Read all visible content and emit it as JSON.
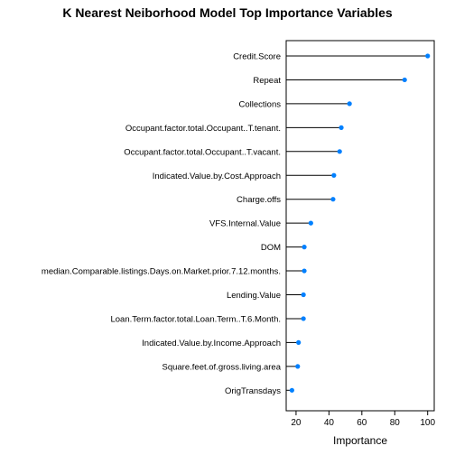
{
  "chart_data": {
    "type": "dot",
    "title": "K Nearest Neiborhood Model Top Importance Variables",
    "xlabel": "Importance",
    "ylabel": "",
    "xlim": [
      14,
      104
    ],
    "xticks": [
      20,
      40,
      60,
      80,
      100
    ],
    "categories": [
      "Credit.Score",
      "Repeat",
      "Collections",
      "Occupant.factor.total.Occupant..T.tenant.",
      "Occupant.factor.total.Occupant..T.vacant.",
      "Indicated.Value.by.Cost.Approach",
      "Charge.offs",
      "VFS.Internal.Value",
      "DOM",
      "median.Comparable.listings.Days.on.Market.prior.7.12.months.",
      "Lending.Value",
      "Loan.Term.factor.total.Loan.Term..T.6.Month.",
      "Indicated.Value.by.Income.Approach",
      "Square.feet.of.gross.living.area",
      "OrigTransdays"
    ],
    "values": [
      100,
      86,
      52.5,
      47.5,
      46.5,
      43,
      42.5,
      29,
      25,
      25,
      24.5,
      24.5,
      21.5,
      21,
      17.5
    ],
    "point_color": "#0080ff"
  }
}
